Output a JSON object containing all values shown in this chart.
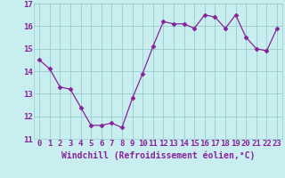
{
  "x": [
    0,
    1,
    2,
    3,
    4,
    5,
    6,
    7,
    8,
    9,
    10,
    11,
    12,
    13,
    14,
    15,
    16,
    17,
    18,
    19,
    20,
    21,
    22,
    23
  ],
  "y": [
    14.5,
    14.1,
    13.3,
    13.2,
    12.4,
    11.6,
    11.6,
    11.7,
    11.5,
    12.8,
    13.9,
    15.1,
    16.2,
    16.1,
    16.1,
    15.9,
    16.5,
    16.4,
    15.9,
    16.5,
    15.5,
    15.0,
    14.9,
    15.9
  ],
  "line_color": "#882299",
  "marker": "D",
  "marker_size": 2.5,
  "background_color": "#c8eef0",
  "grid_color": "#99cccc",
  "xlabel": "Windchill (Refroidissement éolien,°C)",
  "ylim": [
    11,
    17
  ],
  "xlim": [
    -0.5,
    23.5
  ],
  "yticks": [
    11,
    12,
    13,
    14,
    15,
    16,
    17
  ],
  "xticks": [
    0,
    1,
    2,
    3,
    4,
    5,
    6,
    7,
    8,
    9,
    10,
    11,
    12,
    13,
    14,
    15,
    16,
    17,
    18,
    19,
    20,
    21,
    22,
    23
  ],
  "xtick_labels": [
    "0",
    "1",
    "2",
    "3",
    "4",
    "5",
    "6",
    "7",
    "8",
    "9",
    "10",
    "11",
    "12",
    "13",
    "14",
    "15",
    "16",
    "17",
    "18",
    "19",
    "20",
    "21",
    "22",
    "23"
  ],
  "tick_color": "#882299",
  "label_color": "#882299",
  "fontsize_xlabel": 7,
  "fontsize_tick": 6.5
}
